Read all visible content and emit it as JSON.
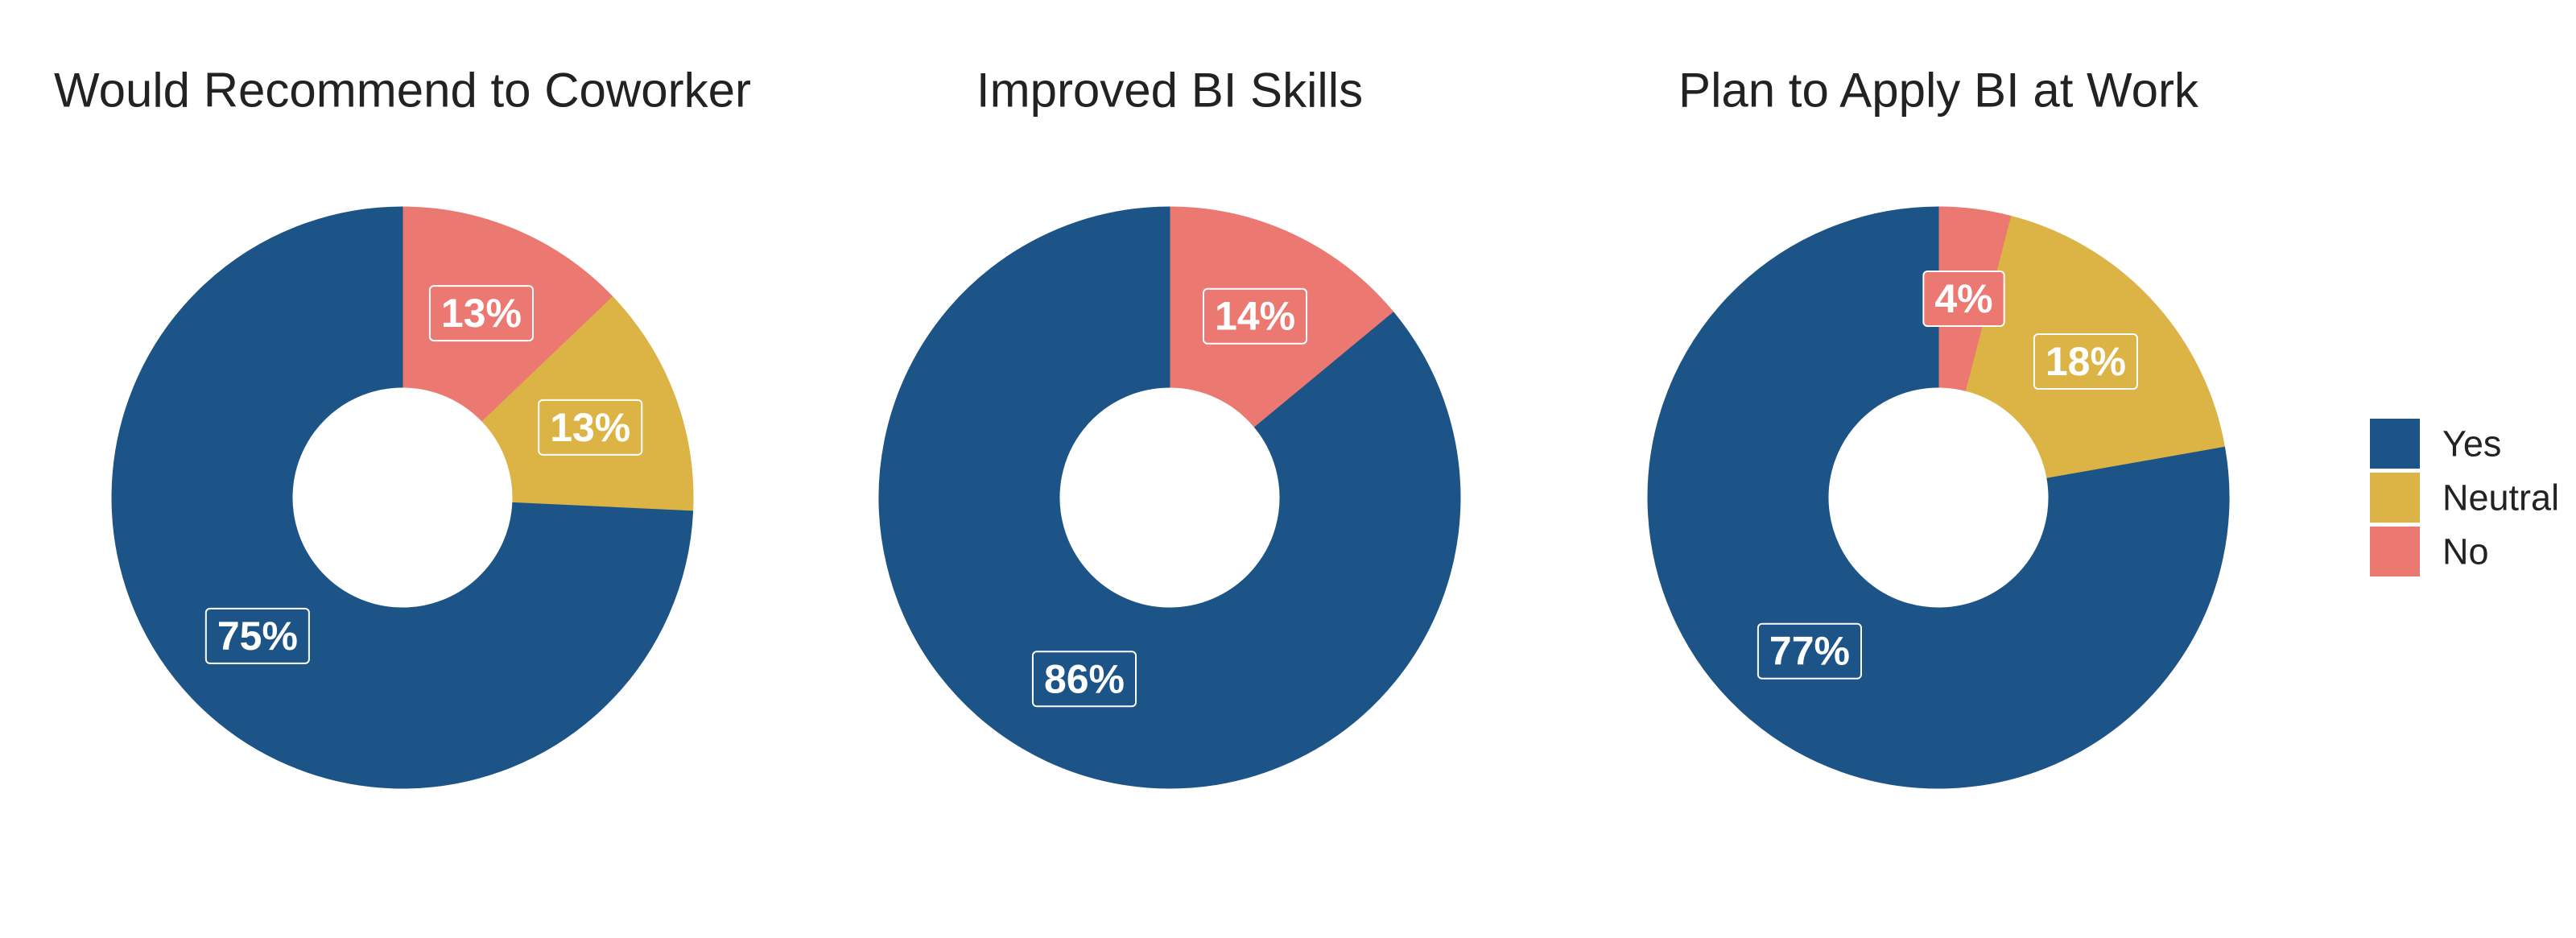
{
  "chart_data": [
    {
      "type": "donut",
      "title": "Would Recommend to Coworker",
      "categories": [
        "Yes",
        "Neutral",
        "No"
      ],
      "values": [
        75,
        13,
        13
      ],
      "value_labels": [
        "75%",
        "13%",
        "13%"
      ],
      "colors": [
        "#1d5487",
        "#dcb446",
        "#ec7872"
      ]
    },
    {
      "type": "donut",
      "title": "Improved BI Skills",
      "categories": [
        "Yes",
        "No"
      ],
      "values": [
        86,
        14
      ],
      "value_labels": [
        "86%",
        "14%"
      ],
      "colors": [
        "#1d5487",
        "#ec7872"
      ]
    },
    {
      "type": "donut",
      "title": "Plan to Apply BI at Work",
      "categories": [
        "Yes",
        "Neutral",
        "No"
      ],
      "values": [
        77,
        18,
        4
      ],
      "value_labels": [
        "77%",
        "18%",
        "4%"
      ],
      "colors": [
        "#1d5487",
        "#dcb446",
        "#ec7872"
      ]
    }
  ]
}
